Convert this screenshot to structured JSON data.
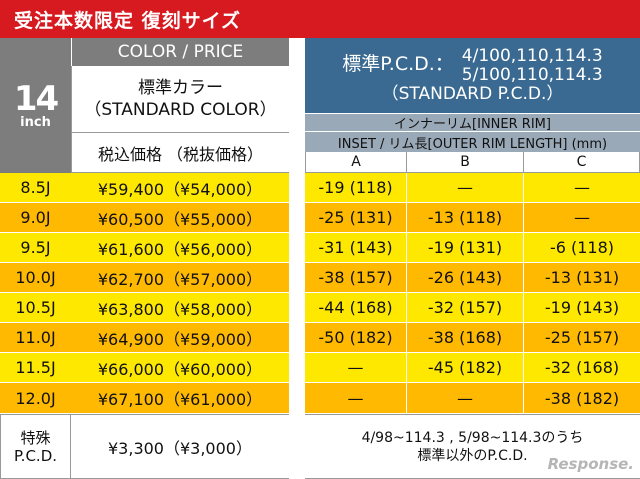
{
  "banner": "受注本数限定 復刻サイズ",
  "size_header": {
    "number": "14",
    "unit": "inch"
  },
  "color_price_header": "COLOR / PRICE",
  "standard_color": {
    "line1": "標準カラー",
    "line2": "（STANDARD COLOR）"
  },
  "price_header": "税込価格 （税抜価格）",
  "pcd_header": {
    "label": "標準P.C.D.：",
    "values1": "4/100,110,114.3",
    "values2": "5/100,110,114.3",
    "line3": "（STANDARD P.C.D.）"
  },
  "inner_rim": "インナーリム[INNER RIM]",
  "inset_header": "INSET / リム長[OUTER RIM LENGTH] (mm)",
  "columns": [
    "A",
    "B",
    "C"
  ],
  "rows": [
    {
      "size": "8.5J",
      "price": "¥59,400（¥54,000）",
      "a": "-19 (118)",
      "b": "—",
      "c": "—"
    },
    {
      "size": "9.0J",
      "price": "¥60,500（¥55,000）",
      "a": "-25 (131)",
      "b": "-13 (118)",
      "c": "—"
    },
    {
      "size": "9.5J",
      "price": "¥61,600（¥56,000）",
      "a": "-31 (143)",
      "b": "-19 (131)",
      "c": "-6 (118)"
    },
    {
      "size": "10.0J",
      "price": "¥62,700（¥57,000）",
      "a": "-38 (157)",
      "b": "-26 (143)",
      "c": "-13 (131)"
    },
    {
      "size": "10.5J",
      "price": "¥63,800（¥58,000）",
      "a": "-44 (168)",
      "b": "-32 (157)",
      "c": "-19 (143)"
    },
    {
      "size": "11.0J",
      "price": "¥64,900（¥59,000）",
      "a": "-50 (182)",
      "b": "-38 (168)",
      "c": "-25 (157)"
    },
    {
      "size": "11.5J",
      "price": "¥66,000（¥60,000）",
      "a": "—",
      "b": "-45 (182)",
      "c": "-32 (168)"
    },
    {
      "size": "12.0J",
      "price": "¥67,100（¥61,000）",
      "a": "—",
      "b": "—",
      "c": "-38 (182)"
    }
  ],
  "special": {
    "label1": "特殊",
    "label2": "P.C.D.",
    "price": "¥3,300（¥3,000）",
    "note1": "4/98~114.3 , 5/98~114.3のうち",
    "note2": "標準以外のP.C.D."
  },
  "watermark": "Response.",
  "colors": {
    "banner": "#d71a20",
    "header_gray": "#7d7d7d",
    "header_blue": "#3a6a91",
    "row_light": "#ffe800",
    "row_dark": "#ffb900"
  }
}
